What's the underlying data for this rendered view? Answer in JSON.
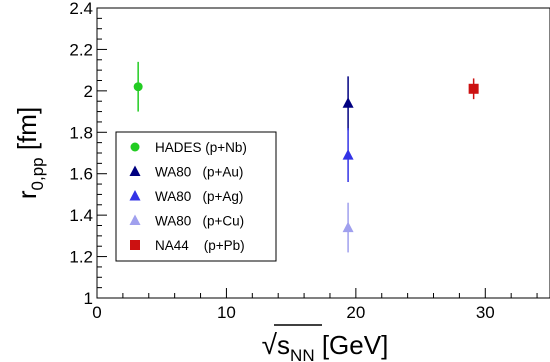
{
  "chart_data": {
    "type": "scatter",
    "title": "",
    "xlabel": {
      "root": "√",
      "base": "s",
      "sub": "NN",
      "unit": " [GeV]"
    },
    "ylabel": {
      "base": "r",
      "sub": "0,pp",
      "unit": " [fm]"
    },
    "xlim": [
      0,
      35
    ],
    "ylim": [
      1,
      2.4
    ],
    "x_ticks": [
      0,
      10,
      20,
      30
    ],
    "y_ticks": [
      1,
      1.2,
      1.4,
      1.6,
      1.8,
      2,
      2.2,
      2.4
    ],
    "grid": false,
    "legend_position": "middle-left",
    "series": [
      {
        "name": "HADES (p+Nb)",
        "marker": "circle",
        "color": "#22cc22",
        "points": [
          {
            "x": 3.18,
            "y": 2.02,
            "err": 0.12
          }
        ]
      },
      {
        "name": "WA80   (p+Au)",
        "marker": "triangle",
        "color": "#000080",
        "points": [
          {
            "x": 19.4,
            "y": 1.94,
            "err": 0.13
          }
        ]
      },
      {
        "name": "WA80   (p+Ag)",
        "marker": "triangle",
        "color": "#3333e6",
        "points": [
          {
            "x": 19.4,
            "y": 1.69,
            "err": 0.13
          }
        ]
      },
      {
        "name": "WA80   (p+Cu)",
        "marker": "triangle",
        "color": "#a0a0ee",
        "points": [
          {
            "x": 19.4,
            "y": 1.34,
            "err": 0.12
          }
        ]
      },
      {
        "name": "NA44    (p+Pb)",
        "marker": "square",
        "color": "#cc1111",
        "points": [
          {
            "x": 29.1,
            "y": 2.01,
            "err": 0.05
          }
        ]
      }
    ]
  }
}
